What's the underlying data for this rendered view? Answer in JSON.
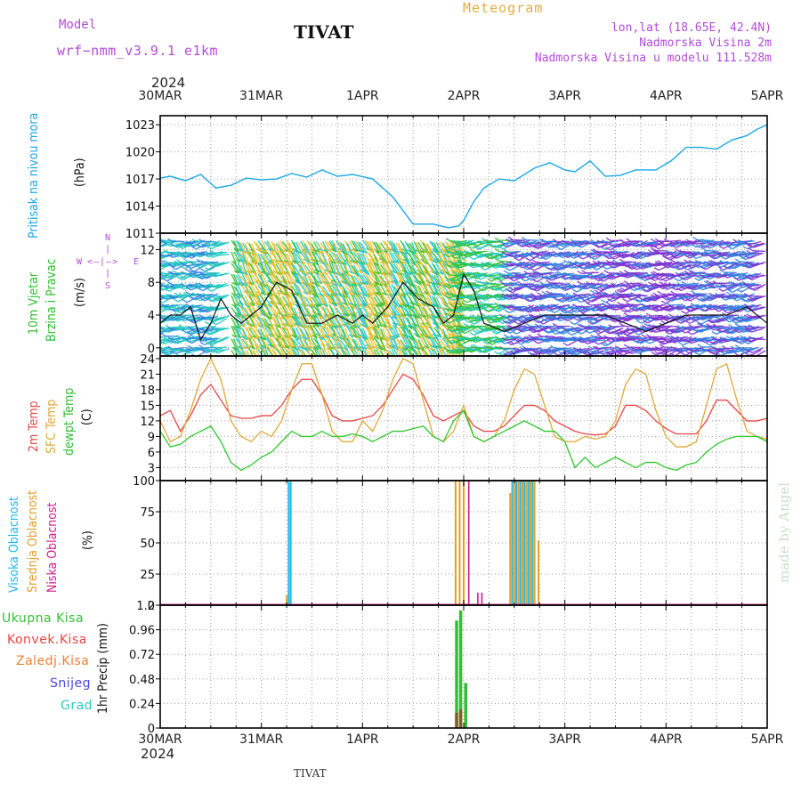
{
  "header": {
    "model_label": "Model",
    "model_value": "wrf−nmm_v3.9.1  e1km",
    "station_title": "TIVAT",
    "meteogram_label": "Meteogram",
    "lonlat": "lon,lat (18.65E, 42.4N)",
    "altitude": "Nadmorska Visina 2m",
    "model_altitude": "Nadmorska Visina u modelu 111.528m",
    "year_top": "2024",
    "year_bottom": "2024",
    "footer_station": "TIVAT",
    "watermark": "made by Angel"
  },
  "x_dates": [
    "30MAR",
    "31MAR",
    "1APR",
    "2APR",
    "3APR",
    "4APR",
    "5APR"
  ],
  "colors": {
    "pressure": "#1ca7e8",
    "temp2m": "#e84646",
    "sfc_temp": "#e0a838",
    "dewpt": "#2ec82e",
    "cloud_high": "#22b8e8",
    "cloud_mid": "#e0a030",
    "cloud_low": "#d01a8a",
    "precip_total": "#30c030",
    "precip_conv": "#e84646",
    "precip_frz": "#f08030",
    "snow": "#4848e8",
    "hail": "#30c8c0",
    "wind_label": "#30c030",
    "wind_compass": "#b24cd8"
  },
  "chart_data": [
    {
      "type": "line",
      "panel": "pressure",
      "ylabel": "(hPa)",
      "side_label": "Pritisak na nivou mora",
      "yticks": [
        1011,
        1014,
        1017,
        1020,
        1023
      ],
      "ylim": [
        1011,
        1024
      ],
      "x_days": [
        0,
        0.1,
        0.25,
        0.4,
        0.55,
        0.7,
        0.85,
        1.0,
        1.15,
        1.3,
        1.45,
        1.6,
        1.75,
        1.9,
        2.1,
        2.3,
        2.5,
        2.7,
        2.85,
        2.95,
        3.0,
        3.1,
        3.2,
        3.35,
        3.5,
        3.7,
        3.85,
        4.0,
        4.1,
        4.25,
        4.4,
        4.55,
        4.7,
        4.9,
        5.05,
        5.2,
        5.35,
        5.5,
        5.65,
        5.8,
        5.9,
        6.0
      ],
      "series": [
        {
          "values": [
            1017.1,
            1017.3,
            1016.8,
            1017.5,
            1016.0,
            1016.3,
            1017.1,
            1016.9,
            1017.0,
            1017.6,
            1017.2,
            1018.0,
            1017.3,
            1017.5,
            1017.0,
            1015.0,
            1012.0,
            1012.0,
            1011.6,
            1011.8,
            1012.4,
            1014.5,
            1016.0,
            1017.0,
            1016.8,
            1018.2,
            1018.8,
            1018.0,
            1017.8,
            1019.0,
            1017.3,
            1017.4,
            1018.0,
            1018.0,
            1019.0,
            1020.5,
            1020.5,
            1020.3,
            1021.3,
            1021.8,
            1022.5,
            1023.0
          ]
        }
      ],
      "grid": true
    },
    {
      "type": "line",
      "panel": "wind",
      "ylabel": "(m/s)",
      "side_label_1": "10m Vjetar",
      "side_label_2": "Brzina i Pravac",
      "compass": [
        "N",
        "E",
        "W",
        "S"
      ],
      "yticks": [
        0,
        4,
        8,
        12
      ],
      "ylim": [
        -1,
        14
      ],
      "x_days": [
        0,
        0.1,
        0.2,
        0.3,
        0.4,
        0.5,
        0.6,
        0.7,
        0.8,
        1.0,
        1.15,
        1.3,
        1.45,
        1.6,
        1.75,
        1.9,
        2.0,
        2.1,
        2.25,
        2.4,
        2.55,
        2.7,
        2.8,
        2.9,
        3.0,
        3.1,
        3.2,
        3.4,
        3.6,
        3.8,
        4.0,
        4.2,
        4.4,
        4.6,
        4.8,
        5.0,
        5.2,
        5.4,
        5.6,
        5.8,
        6.0
      ],
      "series": [
        {
          "name": "speed",
          "values": [
            3,
            4,
            4,
            5,
            1,
            3,
            6,
            4,
            3,
            5,
            8,
            7,
            3,
            3,
            4,
            3,
            4,
            3,
            5,
            8,
            6,
            5,
            3,
            4,
            9,
            7,
            3,
            2,
            3,
            4,
            4,
            4,
            4,
            3,
            2,
            3,
            4,
            4,
            4,
            5,
            3
          ]
        }
      ],
      "grid": true
    },
    {
      "type": "line",
      "panel": "temperature",
      "ylabel": "(C)",
      "side_label_1": "2m Temp",
      "side_label_2": "SFC Temp",
      "side_label_3": "dewpt Temp",
      "yticks": [
        3,
        6,
        9,
        12,
        15,
        18,
        21,
        24
      ],
      "ylim": [
        0.5,
        24.5
      ],
      "x_days": [
        0,
        0.1,
        0.2,
        0.3,
        0.4,
        0.5,
        0.6,
        0.7,
        0.8,
        0.9,
        1.0,
        1.1,
        1.2,
        1.3,
        1.4,
        1.5,
        1.6,
        1.7,
        1.8,
        1.9,
        2.0,
        2.1,
        2.2,
        2.3,
        2.4,
        2.5,
        2.6,
        2.7,
        2.8,
        2.9,
        3.0,
        3.1,
        3.2,
        3.3,
        3.4,
        3.5,
        3.6,
        3.7,
        3.8,
        3.9,
        4.0,
        4.1,
        4.2,
        4.3,
        4.4,
        4.5,
        4.6,
        4.7,
        4.8,
        4.9,
        5.0,
        5.1,
        5.2,
        5.3,
        5.4,
        5.5,
        5.6,
        5.7,
        5.8,
        5.9,
        6.0
      ],
      "series": [
        {
          "name": "2m Temp",
          "values": [
            13,
            14,
            10,
            13,
            17,
            19,
            16,
            13,
            12.5,
            12.5,
            13,
            13,
            15,
            18,
            20,
            20,
            17,
            13,
            12,
            12,
            12.5,
            13,
            15,
            18,
            21,
            20,
            17,
            13,
            12,
            13,
            14,
            11,
            10,
            10,
            11,
            13,
            15,
            15,
            14,
            12,
            11,
            10,
            9.5,
            9.3,
            9.5,
            11,
            15,
            15,
            14,
            12,
            10.5,
            9.5,
            9.5,
            9.5,
            12,
            16,
            16,
            14,
            12,
            12,
            12.5
          ]
        },
        {
          "name": "SFC Temp",
          "values": [
            12,
            8,
            9,
            14,
            20,
            24,
            20,
            12,
            9,
            8,
            10,
            9,
            12,
            18,
            23,
            23,
            17,
            10,
            8,
            8,
            12,
            10,
            14,
            20,
            24,
            23,
            16,
            9,
            8,
            10,
            15,
            9,
            8,
            9,
            12,
            18,
            22,
            21,
            15,
            9,
            8,
            8,
            9,
            8.5,
            9,
            12,
            19,
            22,
            21,
            14,
            9,
            7,
            7,
            8,
            15,
            22,
            23,
            16,
            10,
            9,
            8.5
          ]
        },
        {
          "name": "dewpt Temp",
          "values": [
            10,
            7,
            7.5,
            9,
            10,
            11,
            8,
            4,
            2.5,
            3.5,
            5,
            6,
            8,
            10,
            9,
            9,
            10,
            9,
            9,
            9.5,
            9,
            8,
            9,
            10,
            10,
            10.5,
            11,
            9,
            8,
            12,
            14,
            9,
            8,
            9,
            10,
            11,
            12,
            11,
            10,
            10,
            8,
            3,
            5,
            3,
            4,
            5,
            4,
            3,
            4,
            4,
            3,
            2.5,
            3.5,
            4,
            6,
            7.5,
            8.5,
            9,
            9,
            9,
            8
          ]
        }
      ],
      "grid": true
    },
    {
      "type": "bar",
      "panel": "clouds",
      "ylabel": "(%)",
      "side_label_1": "Visoka Oblacnost",
      "side_label_2": "Srednja Oblacnost",
      "side_label_3": "Niska Oblacnost",
      "yticks": [
        0,
        25,
        50,
        75,
        100
      ],
      "ylim": [
        0,
        100
      ],
      "series": [
        {
          "name": "Visoka Oblacnost",
          "x_days": [
            1.27,
            1.29,
            3.48,
            3.52,
            3.56,
            3.6,
            3.64,
            3.68
          ],
          "values": [
            99,
            99,
            100,
            100,
            100,
            100,
            100,
            100
          ]
        },
        {
          "name": "Srednja Oblacnost",
          "x_days": [
            1.25,
            2.92,
            2.96,
            3.0,
            3.46,
            3.5,
            3.54,
            3.58,
            3.62,
            3.66,
            3.7,
            3.74
          ],
          "values": [
            8,
            100,
            100,
            100,
            90,
            100,
            100,
            100,
            100,
            100,
            100,
            52
          ]
        },
        {
          "name": "Niska Oblacnost",
          "x_days": [
            3.05,
            3.14,
            3.18
          ],
          "values": [
            100,
            10,
            10
          ]
        }
      ],
      "grid": true
    },
    {
      "type": "bar",
      "panel": "precip",
      "ylabel": "1hr Precip (mm)",
      "legend": [
        "Ukupna Kisa",
        "Konvek.Kisa",
        "Zaledj.Kisa",
        "Snijeg",
        "Grad"
      ],
      "yticks": [
        0,
        0.24,
        0.48,
        0.72,
        0.96,
        1.2
      ],
      "ylim": [
        0,
        1.2
      ],
      "series": [
        {
          "name": "Ukupna Kisa",
          "x_days": [
            2.93,
            2.97,
            3.02
          ],
          "values": [
            1.05,
            1.15,
            0.44
          ]
        },
        {
          "name": "Konvek.Kisa",
          "x_days": [
            2.93,
            2.97
          ],
          "values": [
            0.15,
            0.18
          ]
        }
      ],
      "grid": true
    }
  ]
}
